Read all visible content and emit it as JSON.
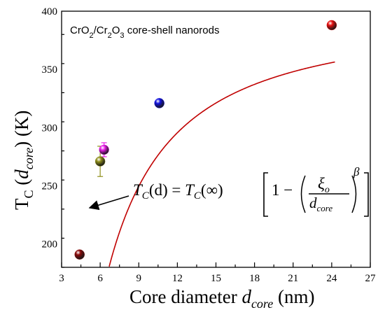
{
  "chart_data": {
    "type": "scatter",
    "annotation_title": {
      "parts": [
        "CrO",
        "2",
        "/Cr",
        "2",
        "O",
        "3",
        " core-shell nanorods"
      ]
    },
    "xlabel": {
      "main": "Core diameter ",
      "var": "d",
      "sub": "core",
      "unit": " (nm)"
    },
    "ylabel": {
      "prefix": "T",
      "prefix_sub": "C",
      "open": " (",
      "var": "d",
      "sub": "core",
      "close": ") (K)"
    },
    "xlim": [
      3,
      27
    ],
    "ylim": [
      180,
      400
    ],
    "xticks": [
      3,
      6,
      9,
      12,
      15,
      18,
      21,
      24,
      27
    ],
    "yticks": [
      200,
      250,
      300,
      350,
      400
    ],
    "points": [
      {
        "x": 4.4,
        "y": 191,
        "color": "#8b0a0a"
      },
      {
        "x": 6.0,
        "y": 271,
        "color": "#8f8f1a",
        "yerr": 13
      },
      {
        "x": 6.3,
        "y": 281,
        "color": "#e81ee8",
        "yerr": 6
      },
      {
        "x": 10.6,
        "y": 321,
        "color": "#1010e0"
      },
      {
        "x": 24.0,
        "y": 388,
        "color": "#e81010"
      }
    ],
    "fit": {
      "model": "Tc(d) = Tc(inf) * (1 - (xi/d)^beta)",
      "Tc_inf": 397,
      "xi": 4.2,
      "beta": 1.3,
      "color": "#c00000"
    },
    "equation": {
      "lhs_T": "T",
      "lhs_sub": "C",
      "lhs_arg": "(d) = ",
      "rhs_T": "T",
      "rhs_sub": "C",
      "rhs_arg": "(∞)",
      "one_minus": "1 − ",
      "num": "ξ",
      "num_sub": "o",
      "den": "d",
      "den_sub": "core",
      "exp": "β"
    },
    "grid": false,
    "legend": "none"
  }
}
